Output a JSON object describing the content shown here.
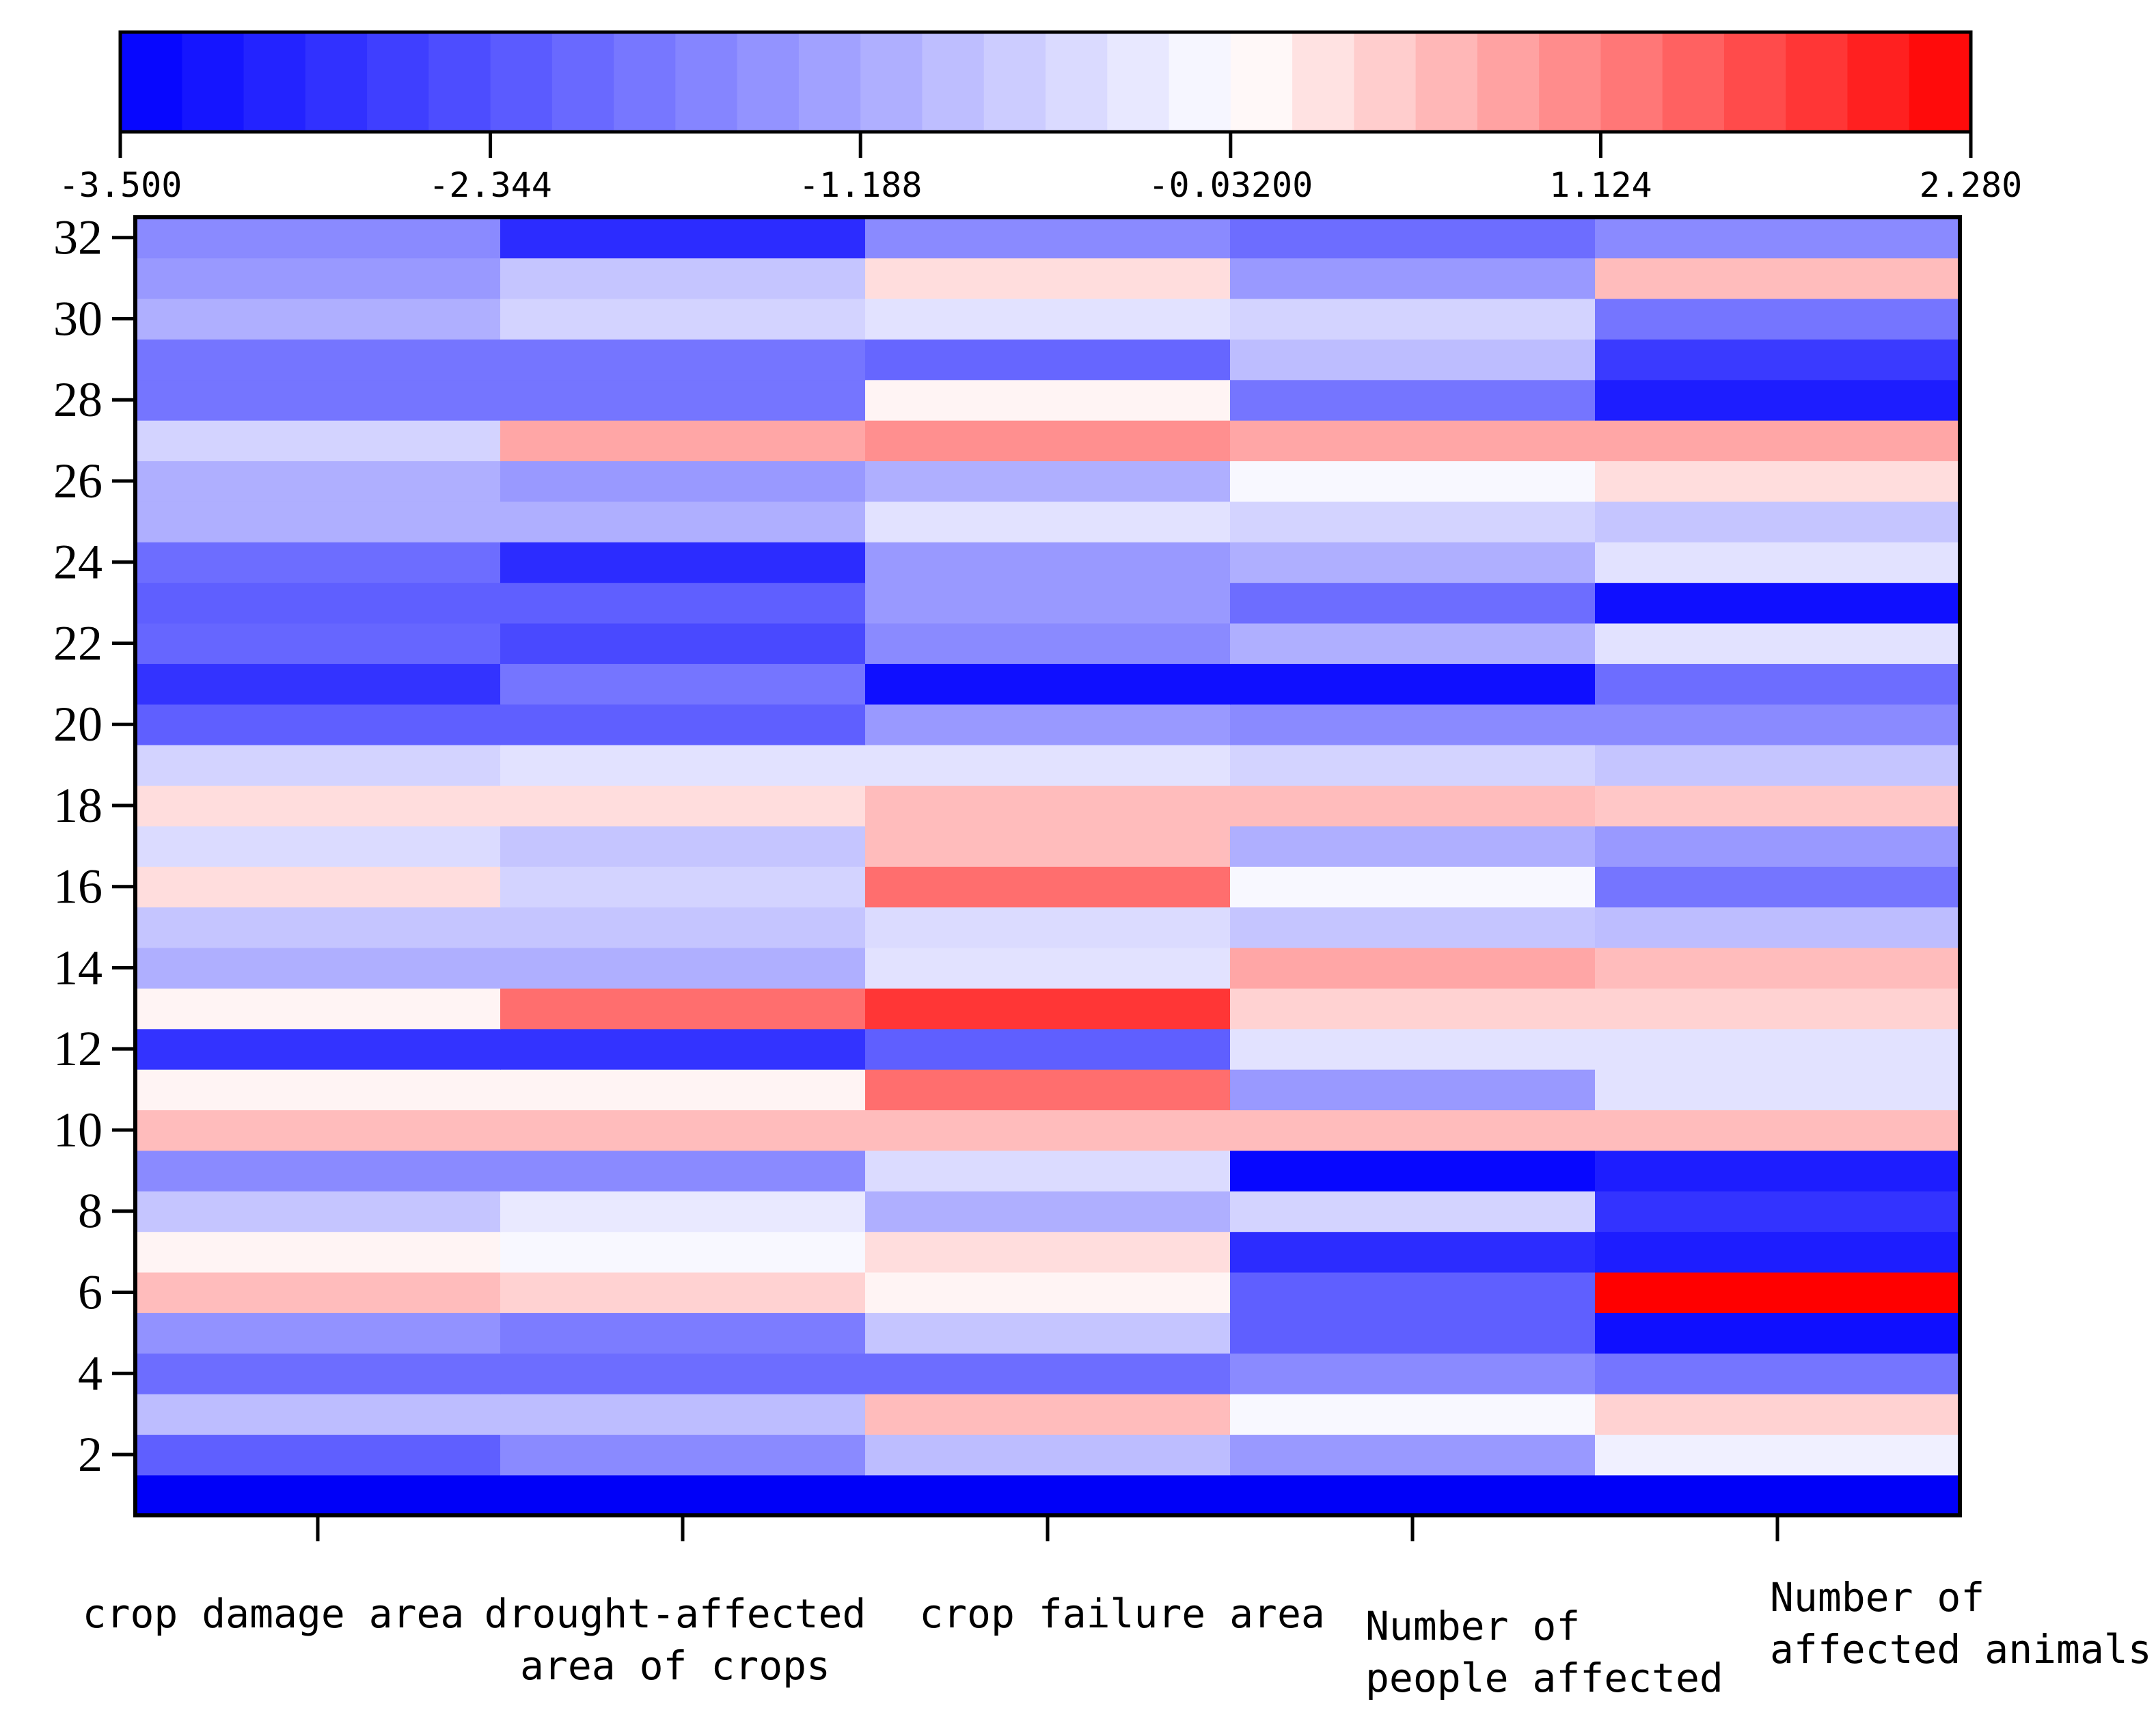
{
  "chart_data": {
    "type": "heatmap",
    "title": "",
    "xlabel": "",
    "ylabel": "",
    "colormap": {
      "low": "#0000ff",
      "mid": "#ffffff",
      "high": "#ff0000",
      "center": 0
    },
    "colorbar": {
      "range": [
        -3.5,
        2.28
      ],
      "levels": 30,
      "ticks": [
        -3.5,
        -2.344,
        -1.188,
        -0.032,
        1.124,
        2.28
      ],
      "tick_labels": [
        "-3.500",
        "-2.344",
        "-1.188",
        "-0.03200",
        "1.124",
        "2.280"
      ]
    },
    "x_categories": [
      [
        "crop damage area"
      ],
      [
        "drought-affected",
        "area of crops"
      ],
      [
        "crop failure area"
      ],
      [
        "Number of",
        "people affected"
      ],
      [
        "Number of",
        "affected animals"
      ]
    ],
    "y_rows": [
      1,
      2,
      3,
      4,
      5,
      6,
      7,
      8,
      9,
      10,
      11,
      12,
      13,
      14,
      15,
      16,
      17,
      18,
      19,
      20,
      21,
      22,
      23,
      24,
      25,
      26,
      27,
      28,
      29,
      30,
      31,
      32
    ],
    "y_ticks": [
      2,
      4,
      6,
      8,
      10,
      12,
      14,
      16,
      18,
      20,
      22,
      24,
      26,
      28,
      30,
      32
    ],
    "ylim": [
      0.5,
      32.5
    ],
    "values": [
      [
        -3.7,
        -3.7,
        -3.7,
        -3.7,
        -3.7
      ],
      [
        -2.2,
        -1.6,
        -0.9,
        -1.4,
        -0.2
      ],
      [
        -0.9,
        -0.9,
        0.6,
        -0.1,
        0.4
      ],
      [
        -2.0,
        -2.0,
        -2.0,
        -1.6,
        -1.9
      ],
      [
        -1.5,
        -1.8,
        -0.8,
        -2.2,
        -3.3
      ],
      [
        0.6,
        0.4,
        0.1,
        -2.2,
        2.28
      ],
      [
        0.1,
        -0.1,
        0.3,
        -2.9,
        -3.1
      ],
      [
        -0.8,
        -0.3,
        -1.1,
        -0.6,
        -2.8
      ],
      [
        -1.6,
        -1.6,
        -0.5,
        -3.4,
        -3.1
      ],
      [
        0.6,
        0.6,
        0.6,
        0.6,
        0.6
      ],
      [
        0.1,
        0.1,
        1.3,
        -1.4,
        -0.4
      ],
      [
        -2.8,
        -2.8,
        -2.2,
        -0.4,
        -0.4
      ],
      [
        0.1,
        1.3,
        1.8,
        0.4,
        0.4
      ],
      [
        -1.1,
        -1.1,
        -0.4,
        0.8,
        0.6
      ],
      [
        -0.8,
        -0.8,
        -0.5,
        -0.8,
        -0.9
      ],
      [
        0.3,
        -0.6,
        1.3,
        -0.1,
        -1.9
      ],
      [
        -0.5,
        -0.8,
        0.6,
        -1.1,
        -1.4
      ],
      [
        0.3,
        0.3,
        0.6,
        0.6,
        0.5
      ],
      [
        -0.6,
        -0.4,
        -0.4,
        -0.6,
        -0.8
      ],
      [
        -2.2,
        -2.2,
        -1.4,
        -1.6,
        -1.6
      ],
      [
        -2.8,
        -1.9,
        -3.3,
        -3.3,
        -2.0
      ],
      [
        -2.1,
        -2.5,
        -1.6,
        -1.1,
        -0.4
      ],
      [
        -2.2,
        -2.2,
        -1.4,
        -2.0,
        -3.3
      ],
      [
        -2.0,
        -2.9,
        -1.4,
        -1.1,
        -0.4
      ],
      [
        -1.1,
        -1.1,
        -0.4,
        -0.6,
        -0.8
      ],
      [
        -1.1,
        -1.4,
        -1.1,
        -0.1,
        0.3
      ],
      [
        -0.6,
        0.8,
        1.0,
        0.8,
        0.8
      ],
      [
        -1.9,
        -1.9,
        0.1,
        -1.9,
        -3.1
      ],
      [
        -1.9,
        -1.9,
        -2.1,
        -0.9,
        -2.7
      ],
      [
        -1.1,
        -0.6,
        -0.4,
        -0.6,
        -1.9
      ],
      [
        -1.4,
        -0.8,
        0.3,
        -1.4,
        0.6
      ],
      [
        -1.6,
        -2.9,
        -1.6,
        -2.0,
        -1.6
      ]
    ]
  }
}
